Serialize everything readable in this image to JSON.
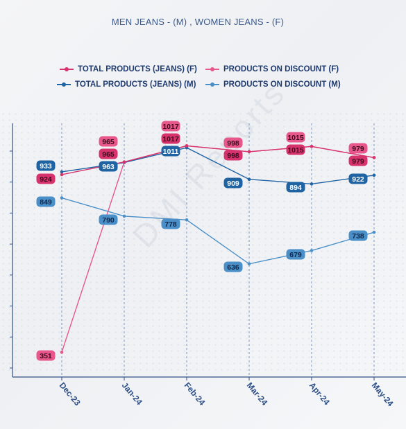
{
  "chart_data": {
    "type": "line",
    "title": "MEN JEANS - (M) , WOMEN JEANS - (F)",
    "categories": [
      "Dec-23",
      "Jan-24",
      "Feb-24",
      "Mar-24",
      "Apr-24",
      "May-24"
    ],
    "ylim": [
      320,
      1060
    ],
    "grid": "vertical dashed",
    "legend_position": "top",
    "series": [
      {
        "name": "TOTAL PRODUCTS (JEANS) (F)",
        "color": "#d6336c",
        "values": [
          924,
          965,
          1017,
          998,
          1015,
          979
        ]
      },
      {
        "name": "PRODUCTS ON DISCOUNT (F)",
        "color": "#e8578a",
        "values": [
          351,
          965,
          1017,
          998,
          1015,
          979
        ]
      },
      {
        "name": "TOTAL PRODUCTS (JEANS) (M)",
        "color": "#1f63a3",
        "values": [
          933,
          963,
          1011,
          909,
          894,
          922
        ]
      },
      {
        "name": "PRODUCTS ON DISCOUNT (M)",
        "color": "#4a8fc7",
        "values": [
          849,
          790,
          778,
          636,
          679,
          738
        ]
      }
    ]
  }
}
